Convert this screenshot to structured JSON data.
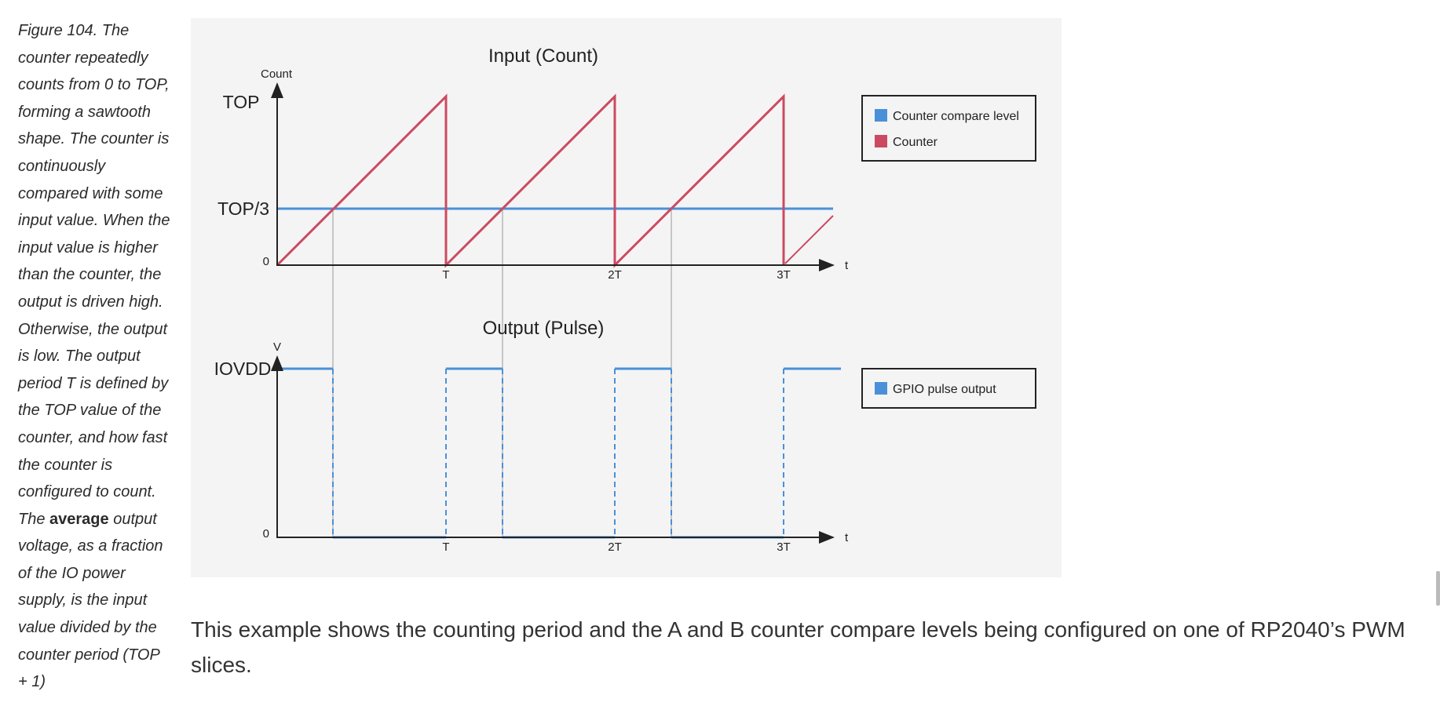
{
  "caption": {
    "pre": "Figure 104. The counter repeatedly counts from 0 to TOP, forming a sawtooth shape. The counter is continuously compared with some input value. When the input value is higher than the counter, the output is driven high. Otherwise, the output is low. The output period T is defined by the TOP value of the counter, and how fast the counter is configured to count. The ",
    "bold": "average",
    "post": " output voltage, as a fraction of the IO power supply, is the input value divided by the counter period (TOP + 1)"
  },
  "body_text": "This example shows the counting period and the A and B counter compare levels being configured on one of RP2040’s PWM slices.",
  "colors": {
    "counter": "#cc4a61",
    "compare": "#4a90d9",
    "axis": "#222222",
    "panel_bg": "#f4f4f4"
  },
  "diagram": {
    "top_panel": {
      "title": "Input (Count)",
      "y_axis_label": "Count",
      "y_ticks": [
        "TOP",
        "TOP/3",
        "0"
      ],
      "x_axis_label": "t",
      "x_ticks": [
        "T",
        "2T",
        "3T"
      ],
      "legend": [
        "Counter compare level",
        "Counter"
      ]
    },
    "bottom_panel": {
      "title": "Output (Pulse)",
      "y_axis_label": "V",
      "y_ticks": [
        "IOVDD",
        "0"
      ],
      "x_axis_label": "t",
      "x_ticks": [
        "T",
        "2T",
        "3T"
      ],
      "legend": [
        "GPIO pulse output"
      ]
    }
  }
}
